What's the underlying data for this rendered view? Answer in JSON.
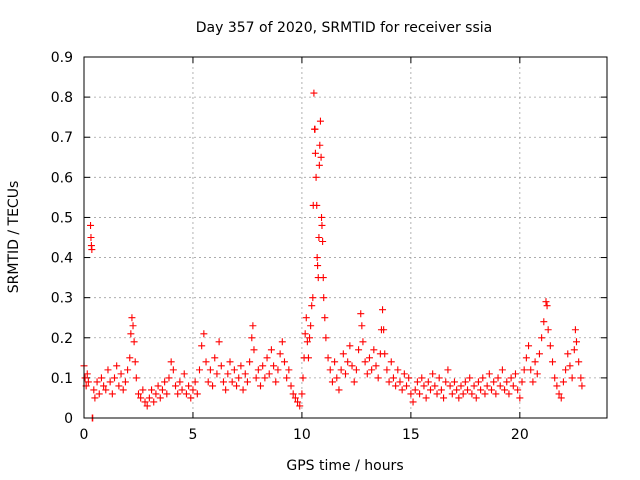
{
  "chart_data": {
    "type": "scatter",
    "title": "Day 357 of 2020, SRMTID for receiver ssia",
    "xlabel": "GPS time / hours",
    "ylabel": "SRMTID / TECUs",
    "xlim": [
      0,
      24
    ],
    "ylim": [
      0,
      0.9
    ],
    "x_ticks": [
      "0",
      "5",
      "10",
      "15",
      "20"
    ],
    "y_ticks": [
      "0",
      "0.1",
      "0.2",
      "0.3",
      "0.4",
      "0.5",
      "0.6",
      "0.7",
      "0.8",
      "0.9"
    ],
    "grid": true,
    "marker": "+",
    "marker_color": "#ff0000",
    "series": [
      {
        "name": "SRMTID",
        "points": [
          [
            0.0,
            0.13
          ],
          [
            0.05,
            0.1
          ],
          [
            0.1,
            0.08
          ],
          [
            0.15,
            0.11
          ],
          [
            0.2,
            0.09
          ],
          [
            0.3,
            0.48
          ],
          [
            0.32,
            0.45
          ],
          [
            0.34,
            0.43
          ],
          [
            0.36,
            0.42
          ],
          [
            0.38,
            0.0
          ],
          [
            0.4,
            0.0
          ],
          [
            0.45,
            0.07
          ],
          [
            0.5,
            0.05
          ],
          [
            0.6,
            0.09
          ],
          [
            0.7,
            0.06
          ],
          [
            0.8,
            0.1
          ],
          [
            0.9,
            0.08
          ],
          [
            1.0,
            0.07
          ],
          [
            1.1,
            0.12
          ],
          [
            1.2,
            0.09
          ],
          [
            1.3,
            0.06
          ],
          [
            1.4,
            0.1
          ],
          [
            1.5,
            0.13
          ],
          [
            1.6,
            0.08
          ],
          [
            1.7,
            0.11
          ],
          [
            1.8,
            0.07
          ],
          [
            1.9,
            0.09
          ],
          [
            2.0,
            0.12
          ],
          [
            2.1,
            0.15
          ],
          [
            2.15,
            0.21
          ],
          [
            2.2,
            0.25
          ],
          [
            2.25,
            0.23
          ],
          [
            2.3,
            0.19
          ],
          [
            2.35,
            0.14
          ],
          [
            2.4,
            0.1
          ],
          [
            2.5,
            0.06
          ],
          [
            2.6,
            0.05
          ],
          [
            2.7,
            0.07
          ],
          [
            2.8,
            0.04
          ],
          [
            2.9,
            0.03
          ],
          [
            3.0,
            0.05
          ],
          [
            3.1,
            0.07
          ],
          [
            3.2,
            0.04
          ],
          [
            3.3,
            0.06
          ],
          [
            3.4,
            0.08
          ],
          [
            3.5,
            0.05
          ],
          [
            3.6,
            0.07
          ],
          [
            3.7,
            0.09
          ],
          [
            3.8,
            0.06
          ],
          [
            3.9,
            0.1
          ],
          [
            4.0,
            0.14
          ],
          [
            4.1,
            0.12
          ],
          [
            4.2,
            0.08
          ],
          [
            4.3,
            0.06
          ],
          [
            4.4,
            0.09
          ],
          [
            4.5,
            0.07
          ],
          [
            4.6,
            0.11
          ],
          [
            4.7,
            0.06
          ],
          [
            4.8,
            0.08
          ],
          [
            4.9,
            0.05
          ],
          [
            5.0,
            0.07
          ],
          [
            5.1,
            0.09
          ],
          [
            5.2,
            0.06
          ],
          [
            5.3,
            0.12
          ],
          [
            5.4,
            0.18
          ],
          [
            5.5,
            0.21
          ],
          [
            5.6,
            0.14
          ],
          [
            5.7,
            0.09
          ],
          [
            5.8,
            0.12
          ],
          [
            5.9,
            0.08
          ],
          [
            6.0,
            0.15
          ],
          [
            6.1,
            0.11
          ],
          [
            6.2,
            0.19
          ],
          [
            6.3,
            0.13
          ],
          [
            6.4,
            0.09
          ],
          [
            6.5,
            0.07
          ],
          [
            6.6,
            0.11
          ],
          [
            6.7,
            0.14
          ],
          [
            6.8,
            0.09
          ],
          [
            6.9,
            0.12
          ],
          [
            7.0,
            0.08
          ],
          [
            7.1,
            0.1
          ],
          [
            7.2,
            0.13
          ],
          [
            7.3,
            0.07
          ],
          [
            7.4,
            0.11
          ],
          [
            7.5,
            0.09
          ],
          [
            7.6,
            0.14
          ],
          [
            7.7,
            0.2
          ],
          [
            7.75,
            0.23
          ],
          [
            7.8,
            0.17
          ],
          [
            7.9,
            0.1
          ],
          [
            8.0,
            0.12
          ],
          [
            8.1,
            0.08
          ],
          [
            8.2,
            0.13
          ],
          [
            8.3,
            0.1
          ],
          [
            8.4,
            0.15
          ],
          [
            8.5,
            0.11
          ],
          [
            8.6,
            0.17
          ],
          [
            8.7,
            0.13
          ],
          [
            8.8,
            0.09
          ],
          [
            8.9,
            0.12
          ],
          [
            9.0,
            0.16
          ],
          [
            9.1,
            0.19
          ],
          [
            9.2,
            0.14
          ],
          [
            9.3,
            0.1
          ],
          [
            9.4,
            0.12
          ],
          [
            9.5,
            0.08
          ],
          [
            9.6,
            0.06
          ],
          [
            9.7,
            0.05
          ],
          [
            9.8,
            0.04
          ],
          [
            9.9,
            0.03
          ],
          [
            10.0,
            0.06
          ],
          [
            10.05,
            0.1
          ],
          [
            10.1,
            0.15
          ],
          [
            10.15,
            0.21
          ],
          [
            10.2,
            0.25
          ],
          [
            10.25,
            0.19
          ],
          [
            10.3,
            0.15
          ],
          [
            10.35,
            0.2
          ],
          [
            10.4,
            0.23
          ],
          [
            10.45,
            0.28
          ],
          [
            10.5,
            0.3
          ],
          [
            10.52,
            0.53
          ],
          [
            10.55,
            0.81
          ],
          [
            10.58,
            0.72
          ],
          [
            10.6,
            0.72
          ],
          [
            10.62,
            0.66
          ],
          [
            10.65,
            0.6
          ],
          [
            10.68,
            0.53
          ],
          [
            10.7,
            0.4
          ],
          [
            10.72,
            0.38
          ],
          [
            10.75,
            0.35
          ],
          [
            10.78,
            0.45
          ],
          [
            10.8,
            0.63
          ],
          [
            10.82,
            0.68
          ],
          [
            10.85,
            0.74
          ],
          [
            10.88,
            0.65
          ],
          [
            10.9,
            0.5
          ],
          [
            10.92,
            0.48
          ],
          [
            10.95,
            0.44
          ],
          [
            10.98,
            0.35
          ],
          [
            11.0,
            0.3
          ],
          [
            11.05,
            0.25
          ],
          [
            11.1,
            0.2
          ],
          [
            11.2,
            0.15
          ],
          [
            11.3,
            0.12
          ],
          [
            11.4,
            0.09
          ],
          [
            11.5,
            0.14
          ],
          [
            11.6,
            0.1
          ],
          [
            11.7,
            0.07
          ],
          [
            11.8,
            0.12
          ],
          [
            11.9,
            0.16
          ],
          [
            12.0,
            0.11
          ],
          [
            12.1,
            0.14
          ],
          [
            12.2,
            0.18
          ],
          [
            12.3,
            0.13
          ],
          [
            12.4,
            0.09
          ],
          [
            12.5,
            0.12
          ],
          [
            12.6,
            0.17
          ],
          [
            12.7,
            0.26
          ],
          [
            12.75,
            0.23
          ],
          [
            12.8,
            0.19
          ],
          [
            12.9,
            0.14
          ],
          [
            13.0,
            0.11
          ],
          [
            13.1,
            0.15
          ],
          [
            13.2,
            0.12
          ],
          [
            13.3,
            0.17
          ],
          [
            13.4,
            0.13
          ],
          [
            13.5,
            0.1
          ],
          [
            13.6,
            0.16
          ],
          [
            13.65,
            0.22
          ],
          [
            13.7,
            0.27
          ],
          [
            13.75,
            0.22
          ],
          [
            13.8,
            0.16
          ],
          [
            13.9,
            0.12
          ],
          [
            14.0,
            0.09
          ],
          [
            14.1,
            0.14
          ],
          [
            14.2,
            0.1
          ],
          [
            14.3,
            0.08
          ],
          [
            14.4,
            0.12
          ],
          [
            14.5,
            0.09
          ],
          [
            14.6,
            0.07
          ],
          [
            14.7,
            0.11
          ],
          [
            14.8,
            0.08
          ],
          [
            14.9,
            0.1
          ],
          [
            15.0,
            0.06
          ],
          [
            15.1,
            0.04
          ],
          [
            15.2,
            0.07
          ],
          [
            15.3,
            0.09
          ],
          [
            15.4,
            0.06
          ],
          [
            15.5,
            0.1
          ],
          [
            15.6,
            0.08
          ],
          [
            15.7,
            0.05
          ],
          [
            15.8,
            0.09
          ],
          [
            15.9,
            0.07
          ],
          [
            16.0,
            0.11
          ],
          [
            16.1,
            0.08
          ],
          [
            16.2,
            0.06
          ],
          [
            16.3,
            0.1
          ],
          [
            16.4,
            0.07
          ],
          [
            16.5,
            0.05
          ],
          [
            16.6,
            0.09
          ],
          [
            16.7,
            0.12
          ],
          [
            16.8,
            0.08
          ],
          [
            16.9,
            0.06
          ],
          [
            17.0,
            0.09
          ],
          [
            17.1,
            0.07
          ],
          [
            17.2,
            0.05
          ],
          [
            17.3,
            0.08
          ],
          [
            17.4,
            0.06
          ],
          [
            17.5,
            0.09
          ],
          [
            17.6,
            0.07
          ],
          [
            17.7,
            0.1
          ],
          [
            17.8,
            0.06
          ],
          [
            17.9,
            0.08
          ],
          [
            18.0,
            0.05
          ],
          [
            18.1,
            0.09
          ],
          [
            18.2,
            0.07
          ],
          [
            18.3,
            0.1
          ],
          [
            18.4,
            0.06
          ],
          [
            18.5,
            0.08
          ],
          [
            18.6,
            0.11
          ],
          [
            18.7,
            0.07
          ],
          [
            18.8,
            0.09
          ],
          [
            18.9,
            0.06
          ],
          [
            19.0,
            0.1
          ],
          [
            19.1,
            0.08
          ],
          [
            19.2,
            0.12
          ],
          [
            19.3,
            0.07
          ],
          [
            19.4,
            0.09
          ],
          [
            19.5,
            0.06
          ],
          [
            19.6,
            0.1
          ],
          [
            19.7,
            0.08
          ],
          [
            19.8,
            0.11
          ],
          [
            19.9,
            0.07
          ],
          [
            20.0,
            0.05
          ],
          [
            20.1,
            0.09
          ],
          [
            20.2,
            0.12
          ],
          [
            20.3,
            0.15
          ],
          [
            20.4,
            0.18
          ],
          [
            20.5,
            0.12
          ],
          [
            20.6,
            0.09
          ],
          [
            20.7,
            0.14
          ],
          [
            20.8,
            0.11
          ],
          [
            20.9,
            0.16
          ],
          [
            21.0,
            0.2
          ],
          [
            21.1,
            0.24
          ],
          [
            21.2,
            0.29
          ],
          [
            21.25,
            0.28
          ],
          [
            21.3,
            0.22
          ],
          [
            21.4,
            0.18
          ],
          [
            21.5,
            0.14
          ],
          [
            21.6,
            0.1
          ],
          [
            21.7,
            0.08
          ],
          [
            21.8,
            0.06
          ],
          [
            21.9,
            0.05
          ],
          [
            22.0,
            0.09
          ],
          [
            22.1,
            0.12
          ],
          [
            22.2,
            0.16
          ],
          [
            22.3,
            0.13
          ],
          [
            22.4,
            0.1
          ],
          [
            22.5,
            0.17
          ],
          [
            22.55,
            0.22
          ],
          [
            22.6,
            0.19
          ],
          [
            22.7,
            0.14
          ],
          [
            22.8,
            0.1
          ],
          [
            22.85,
            0.08
          ]
        ]
      }
    ]
  }
}
